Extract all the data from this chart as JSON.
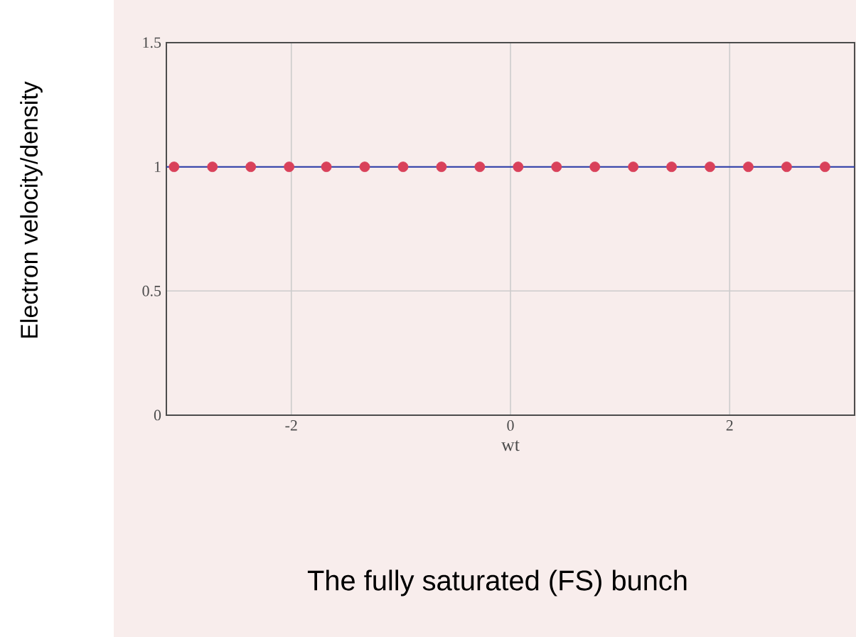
{
  "chart_data": {
    "type": "line",
    "title": "The fully saturated (FS) bunch",
    "xlabel": "wt",
    "ylabel": "Electron velocity/density",
    "series": [
      {
        "color": "#2b3aa8",
        "x": [
          -3.14,
          3.14
        ],
        "values": [
          1,
          1
        ],
        "marker": "none"
      },
      {
        "type": "scatter",
        "color": "#d9415a",
        "x": [
          -3.07,
          -2.72,
          -2.37,
          -2.02,
          -1.68,
          -1.33,
          -0.98,
          -0.63,
          -0.28,
          0.07,
          0.42,
          0.77,
          1.12,
          1.47,
          1.82,
          2.17,
          2.52,
          2.87
        ],
        "values": [
          1,
          1,
          1,
          1,
          1,
          1,
          1,
          1,
          1,
          1,
          1,
          1,
          1,
          1,
          1,
          1,
          1,
          1
        ],
        "marker": "circle"
      }
    ],
    "xlim": [
      -3.14,
      3.14
    ],
    "ylim": [
      0,
      1.5
    ],
    "xticks": [
      -2,
      0,
      2
    ],
    "yticks": [
      0,
      0.5,
      1,
      1.5
    ],
    "grid": true
  }
}
